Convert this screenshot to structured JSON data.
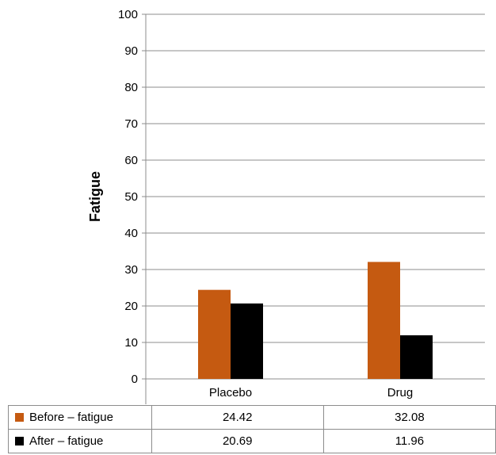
{
  "chart_data": {
    "type": "bar",
    "title": "",
    "ylabel": "Fatigue",
    "xlabel": "",
    "categories": [
      "Placebo",
      "Drug"
    ],
    "ylim": [
      0,
      100
    ],
    "yticks": [
      0,
      10,
      20,
      30,
      40,
      50,
      60,
      70,
      80,
      90,
      100
    ],
    "grid": true,
    "legend": "data-table",
    "series": [
      {
        "name": "Before – fatigue",
        "color": "#c55a11",
        "values": [
          24.42,
          32.08
        ]
      },
      {
        "name": "After – fatigue",
        "color": "#000000",
        "values": [
          20.69,
          11.96
        ]
      }
    ],
    "table": {
      "rows": [
        {
          "label": "Before – fatigue",
          "values": [
            "24.42",
            "32.08"
          ]
        },
        {
          "label": "After – fatigue",
          "values": [
            "20.69",
            "11.96"
          ]
        }
      ]
    }
  }
}
